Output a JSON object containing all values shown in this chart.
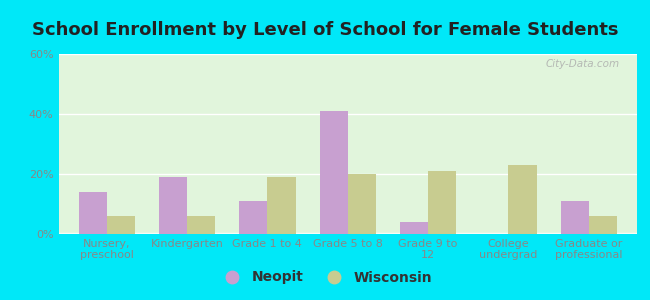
{
  "title": "School Enrollment by Level of School for Female Students",
  "categories": [
    "Nursery,\npreschool",
    "Kindergarten",
    "Grade 1 to 4",
    "Grade 5 to 8",
    "Grade 9 to\n12",
    "College\nundergrad",
    "Graduate or\nprofessional"
  ],
  "neopit_values": [
    14,
    19,
    11,
    41,
    4,
    0,
    11
  ],
  "wisconsin_values": [
    6,
    6,
    19,
    20,
    21,
    23,
    6
  ],
  "neopit_color": "#c8a0d0",
  "wisconsin_color": "#c8cc90",
  "background_outer": "#00e8f8",
  "ylim": [
    0,
    60
  ],
  "yticks": [
    0,
    20,
    40,
    60
  ],
  "ytick_labels": [
    "0%",
    "20%",
    "40%",
    "60%"
  ],
  "bar_width": 0.35,
  "title_fontsize": 13,
  "tick_fontsize": 8,
  "legend_fontsize": 10,
  "watermark": "City-Data.com",
  "legend_labels": [
    "Neopit",
    "Wisconsin"
  ]
}
